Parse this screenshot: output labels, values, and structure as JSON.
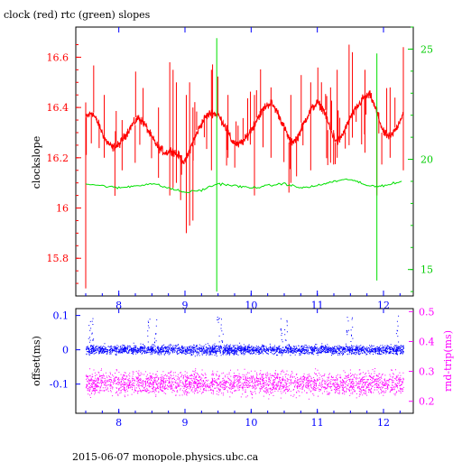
{
  "page": {
    "title": "clock (red) rtc (green) slopes",
    "footer": "2015-06-07  monopole.physics.ubc.ca"
  },
  "colors": {
    "clock": "#ff0000",
    "rtc": "#00e000",
    "offset": "#0000ff",
    "rndtrip": "#ff00ff",
    "axis_left_top": "#ff0000",
    "axis_right_top": "#00cc00",
    "axis_left_bottom": "#0000ff",
    "axis_right_bottom": "#ff00ff",
    "frame": "#000000"
  },
  "chart_data": [
    {
      "id": "slopes",
      "type": "line",
      "title": "clock (red) rtc (green) slopes",
      "xlabel": "",
      "ylabel": "clockslope",
      "xlim": [
        7.35,
        12.45
      ],
      "ylim": [
        15.65,
        16.72
      ],
      "y2lim": [
        13.8,
        26.0
      ],
      "xticks": [
        8,
        9,
        10,
        11,
        12
      ],
      "yticks": [
        15.8,
        16,
        16.2,
        16.4,
        16.6
      ],
      "y2ticks": [
        15,
        20,
        25
      ],
      "grid": false,
      "series": [
        {
          "name": "clock",
          "axis": "left",
          "color": "#ff0000",
          "x": [
            7.5,
            7.6,
            7.7,
            7.8,
            7.9,
            8.0,
            8.1,
            8.2,
            8.3,
            8.4,
            8.5,
            8.6,
            8.7,
            8.8,
            8.9,
            9.0,
            9.1,
            9.2,
            9.3,
            9.4,
            9.5,
            9.6,
            9.7,
            9.8,
            9.9,
            10.0,
            10.1,
            10.2,
            10.3,
            10.4,
            10.5,
            10.6,
            10.7,
            10.8,
            10.9,
            11.0,
            11.1,
            11.2,
            11.3,
            11.4,
            11.5,
            11.6,
            11.7,
            11.8,
            11.9,
            12.0,
            12.1,
            12.2,
            12.3
          ],
          "values": [
            16.36,
            16.38,
            16.33,
            16.27,
            16.24,
            16.25,
            16.29,
            16.33,
            16.36,
            16.33,
            16.28,
            16.24,
            16.22,
            16.23,
            16.21,
            16.18,
            16.25,
            16.31,
            16.36,
            16.38,
            16.37,
            16.33,
            16.27,
            16.25,
            16.27,
            16.31,
            16.36,
            16.4,
            16.42,
            16.38,
            16.32,
            16.26,
            16.28,
            16.34,
            16.39,
            16.42,
            16.39,
            16.31,
            16.26,
            16.3,
            16.36,
            16.4,
            16.44,
            16.45,
            16.38,
            16.3,
            16.28,
            16.32,
            16.38
          ],
          "spikes": [
            {
              "x": 7.5,
              "low": 15.68,
              "high": 16.42
            },
            {
              "x": 7.78,
              "low": 16.2,
              "high": 16.45
            },
            {
              "x": 8.05,
              "low": 16.15,
              "high": 16.35
            },
            {
              "x": 8.6,
              "low": 16.12,
              "high": 16.4
            },
            {
              "x": 8.77,
              "low": 16.05,
              "high": 16.58
            },
            {
              "x": 8.82,
              "low": 16.08,
              "high": 16.55
            },
            {
              "x": 8.87,
              "low": 16.1,
              "high": 16.5
            },
            {
              "x": 9.02,
              "low": 15.9,
              "high": 16.45
            },
            {
              "x": 9.07,
              "low": 15.93,
              "high": 16.5
            },
            {
              "x": 9.12,
              "low": 15.95,
              "high": 16.4
            },
            {
              "x": 9.4,
              "low": 16.15,
              "high": 16.55
            },
            {
              "x": 9.65,
              "low": 16.2,
              "high": 16.45
            },
            {
              "x": 10.05,
              "low": 16.05,
              "high": 16.45
            },
            {
              "x": 10.3,
              "low": 16.2,
              "high": 16.48
            },
            {
              "x": 10.6,
              "low": 16.1,
              "high": 16.45
            },
            {
              "x": 10.9,
              "low": 16.15,
              "high": 16.5
            },
            {
              "x": 11.2,
              "low": 16.18,
              "high": 16.48
            },
            {
              "x": 11.3,
              "low": 16.2,
              "high": 16.55
            },
            {
              "x": 11.48,
              "low": 16.25,
              "high": 16.65
            },
            {
              "x": 11.53,
              "low": 16.28,
              "high": 16.62
            },
            {
              "x": 11.72,
              "low": 16.22,
              "high": 16.55
            },
            {
              "x": 11.9,
              "low": 16.05,
              "high": 16.4
            },
            {
              "x": 12.1,
              "low": 16.2,
              "high": 16.48
            },
            {
              "x": 12.3,
              "low": 16.15,
              "high": 16.64
            }
          ]
        },
        {
          "name": "rtc",
          "axis": "right",
          "color": "#00e000",
          "x": [
            7.5,
            7.75,
            8.0,
            8.25,
            8.5,
            8.75,
            9.0,
            9.25,
            9.5,
            9.75,
            10.0,
            10.25,
            10.5,
            10.75,
            11.0,
            11.25,
            11.5,
            11.75,
            12.0,
            12.3
          ],
          "values": [
            18.9,
            18.8,
            18.7,
            18.8,
            18.9,
            18.7,
            18.5,
            18.6,
            18.9,
            18.8,
            18.7,
            18.8,
            18.9,
            18.7,
            18.8,
            19.0,
            19.1,
            18.8,
            18.8,
            19.0
          ],
          "spikes": [
            {
              "x": 9.48,
              "low": 14.0,
              "high": 25.5
            },
            {
              "x": 11.9,
              "low": 14.5,
              "high": 24.8
            }
          ]
        }
      ]
    },
    {
      "id": "offsets",
      "type": "scatter",
      "xlabel": "",
      "ylabel": "offset(ms)",
      "y2label": "rnd-trip(ms)",
      "xlim": [
        7.35,
        12.45
      ],
      "ylim": [
        -0.185,
        0.12
      ],
      "y2lim": [
        0.16,
        0.51
      ],
      "xticks": [
        8,
        9,
        10,
        11,
        12
      ],
      "yticks": [
        0.1,
        0,
        -0.1
      ],
      "y2ticks": [
        0.5,
        0.4,
        0.3,
        0.2
      ],
      "grid": false,
      "series": [
        {
          "name": "offset",
          "axis": "left",
          "color": "#0000ff",
          "x_range": [
            7.5,
            12.3
          ],
          "center": 0.0,
          "spread": 0.02
        },
        {
          "name": "rnd-trip",
          "axis": "right",
          "color": "#ff00ff",
          "x_range": [
            7.5,
            12.3
          ],
          "center": 0.26,
          "spread": 0.04
        }
      ]
    }
  ]
}
